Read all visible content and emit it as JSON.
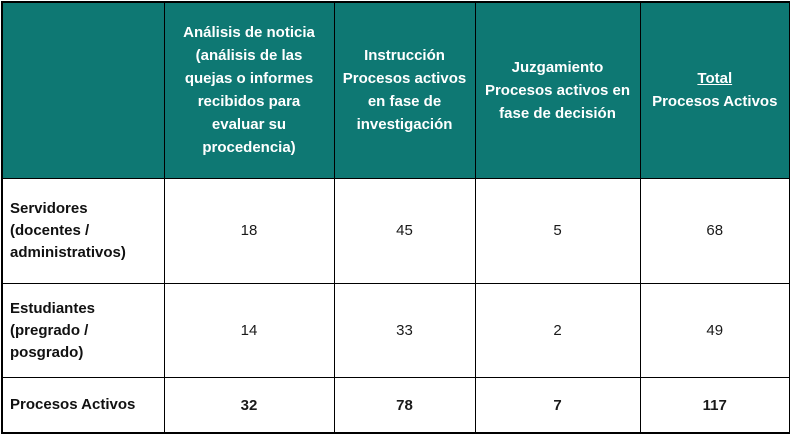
{
  "theme": {
    "header_bg": "#0e7873",
    "header_text": "#ffffff",
    "border": "#000000"
  },
  "table": {
    "headers": {
      "corner": "",
      "analisis": "Análisis de noticia (análisis de las quejas o informes recibidos para evaluar su procedencia)",
      "instruccion": "Instrucción Procesos activos en fase de investigación",
      "juzgamiento": "Juzgamiento Procesos activos en fase de decisión",
      "total": {
        "title": "Total",
        "subtitle": "Procesos Activos"
      }
    },
    "rows": [
      {
        "label": "Servidores (docentes / administrativos)",
        "values": [
          "18",
          "45",
          "5",
          "68"
        ]
      },
      {
        "label": "Estudiantes (pregrado / posgrado)",
        "values": [
          "14",
          "33",
          "2",
          "49"
        ]
      },
      {
        "label": "Procesos Activos",
        "values": [
          "32",
          "78",
          "7",
          "117"
        ]
      }
    ]
  }
}
